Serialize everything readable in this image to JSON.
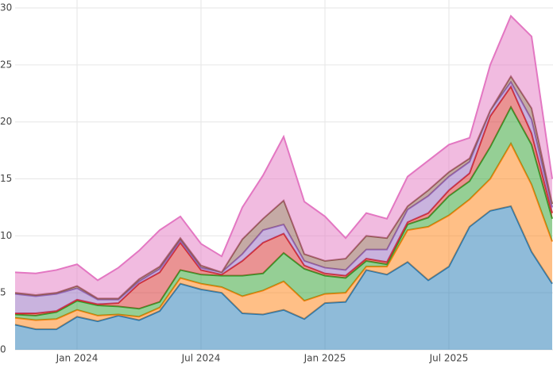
{
  "chart_data": {
    "type": "stacked-area",
    "x": [
      "2023-10",
      "2023-11",
      "2023-12",
      "2024-01",
      "2024-02",
      "2024-03",
      "2024-04",
      "2024-05",
      "2024-06",
      "2024-07",
      "2024-08",
      "2024-09",
      "2024-10",
      "2024-11",
      "2024-12",
      "2025-01",
      "2025-02",
      "2025-03",
      "2025-04",
      "2025-05",
      "2025-06",
      "2025-07",
      "2025-08",
      "2025-09",
      "2025-10",
      "2025-11",
      "2025-12"
    ],
    "series": [
      {
        "color": "#1f77b4",
        "values": [
          2.2,
          1.8,
          1.8,
          2.9,
          2.5,
          3.0,
          2.6,
          3.4,
          5.8,
          5.3,
          5.0,
          3.2,
          3.1,
          3.5,
          2.7,
          4.1,
          4.2,
          7.0,
          6.6,
          7.7,
          6.1,
          7.3,
          10.8,
          12.2,
          12.6,
          8.6,
          5.8
        ]
      },
      {
        "color": "#ff7f0e",
        "values": [
          0.6,
          0.8,
          0.9,
          0.6,
          0.5,
          0.1,
          0.3,
          0.3,
          0.5,
          0.5,
          0.5,
          1.5,
          2.1,
          2.5,
          1.6,
          0.8,
          0.8,
          0.3,
          0.7,
          2.8,
          4.7,
          4.5,
          2.4,
          2.8,
          5.5,
          5.9,
          3.7
        ]
      },
      {
        "color": "#2ca02c",
        "values": [
          0.3,
          0.4,
          0.6,
          0.8,
          0.9,
          0.7,
          0.7,
          0.5,
          0.7,
          0.8,
          1.0,
          1.8,
          1.5,
          2.5,
          2.8,
          1.6,
          1.3,
          0.5,
          0.2,
          0.5,
          0.8,
          1.7,
          1.6,
          2.8,
          3.2,
          3.5,
          2.0
        ]
      },
      {
        "color": "#d62728",
        "values": [
          0.1,
          0.2,
          0.1,
          0.1,
          0.1,
          0.3,
          2.2,
          2.6,
          2.4,
          0.4,
          0.1,
          1.3,
          2.7,
          1.7,
          0.3,
          0.2,
          0.2,
          0.2,
          0.2,
          0.2,
          0.4,
          0.5,
          0.7,
          2.7,
          1.8,
          1.0,
          0.5
        ]
      },
      {
        "color": "#9467bd",
        "values": [
          1.7,
          1.5,
          1.5,
          1.0,
          0.4,
          0.3,
          0.2,
          0.3,
          0.2,
          0.2,
          0.2,
          0.6,
          1.1,
          0.8,
          0.4,
          0.5,
          0.5,
          0.8,
          1.1,
          1.1,
          1.5,
          1.2,
          1.0,
          0.5,
          0.4,
          1.2,
          0.5
        ]
      },
      {
        "color": "#8c564b",
        "values": [
          0.1,
          0.1,
          0.1,
          0.2,
          0.1,
          0.1,
          0.2,
          0.2,
          0.2,
          0.2,
          0.0,
          1.3,
          1.0,
          2.1,
          0.6,
          0.6,
          1.0,
          1.2,
          1.0,
          0.3,
          0.5,
          0.4,
          0.3,
          0.0,
          0.5,
          1.0,
          0.3
        ]
      },
      {
        "color": "#e377c2",
        "values": [
          1.8,
          1.9,
          2.0,
          1.9,
          1.6,
          2.7,
          2.5,
          3.2,
          1.9,
          1.9,
          1.4,
          2.8,
          3.8,
          5.6,
          4.6,
          3.9,
          1.8,
          2.0,
          1.7,
          2.6,
          2.6,
          2.4,
          1.8,
          4.0,
          5.3,
          6.3,
          2.2
        ]
      }
    ],
    "xlim": [
      "2023-10",
      "2025-12"
    ],
    "xticks": [
      {
        "value": "2024-01",
        "label": "Jan 2024"
      },
      {
        "value": "2024-07",
        "label": "Jul 2024"
      },
      {
        "value": "2025-01",
        "label": "Jan 2025"
      },
      {
        "value": "2025-07",
        "label": "Jul 2025"
      }
    ],
    "ylim": [
      0,
      30.7
    ],
    "yticks": [
      0,
      5,
      10,
      15,
      20,
      25,
      30
    ],
    "grid": true,
    "fill_opacity": 0.5
  }
}
